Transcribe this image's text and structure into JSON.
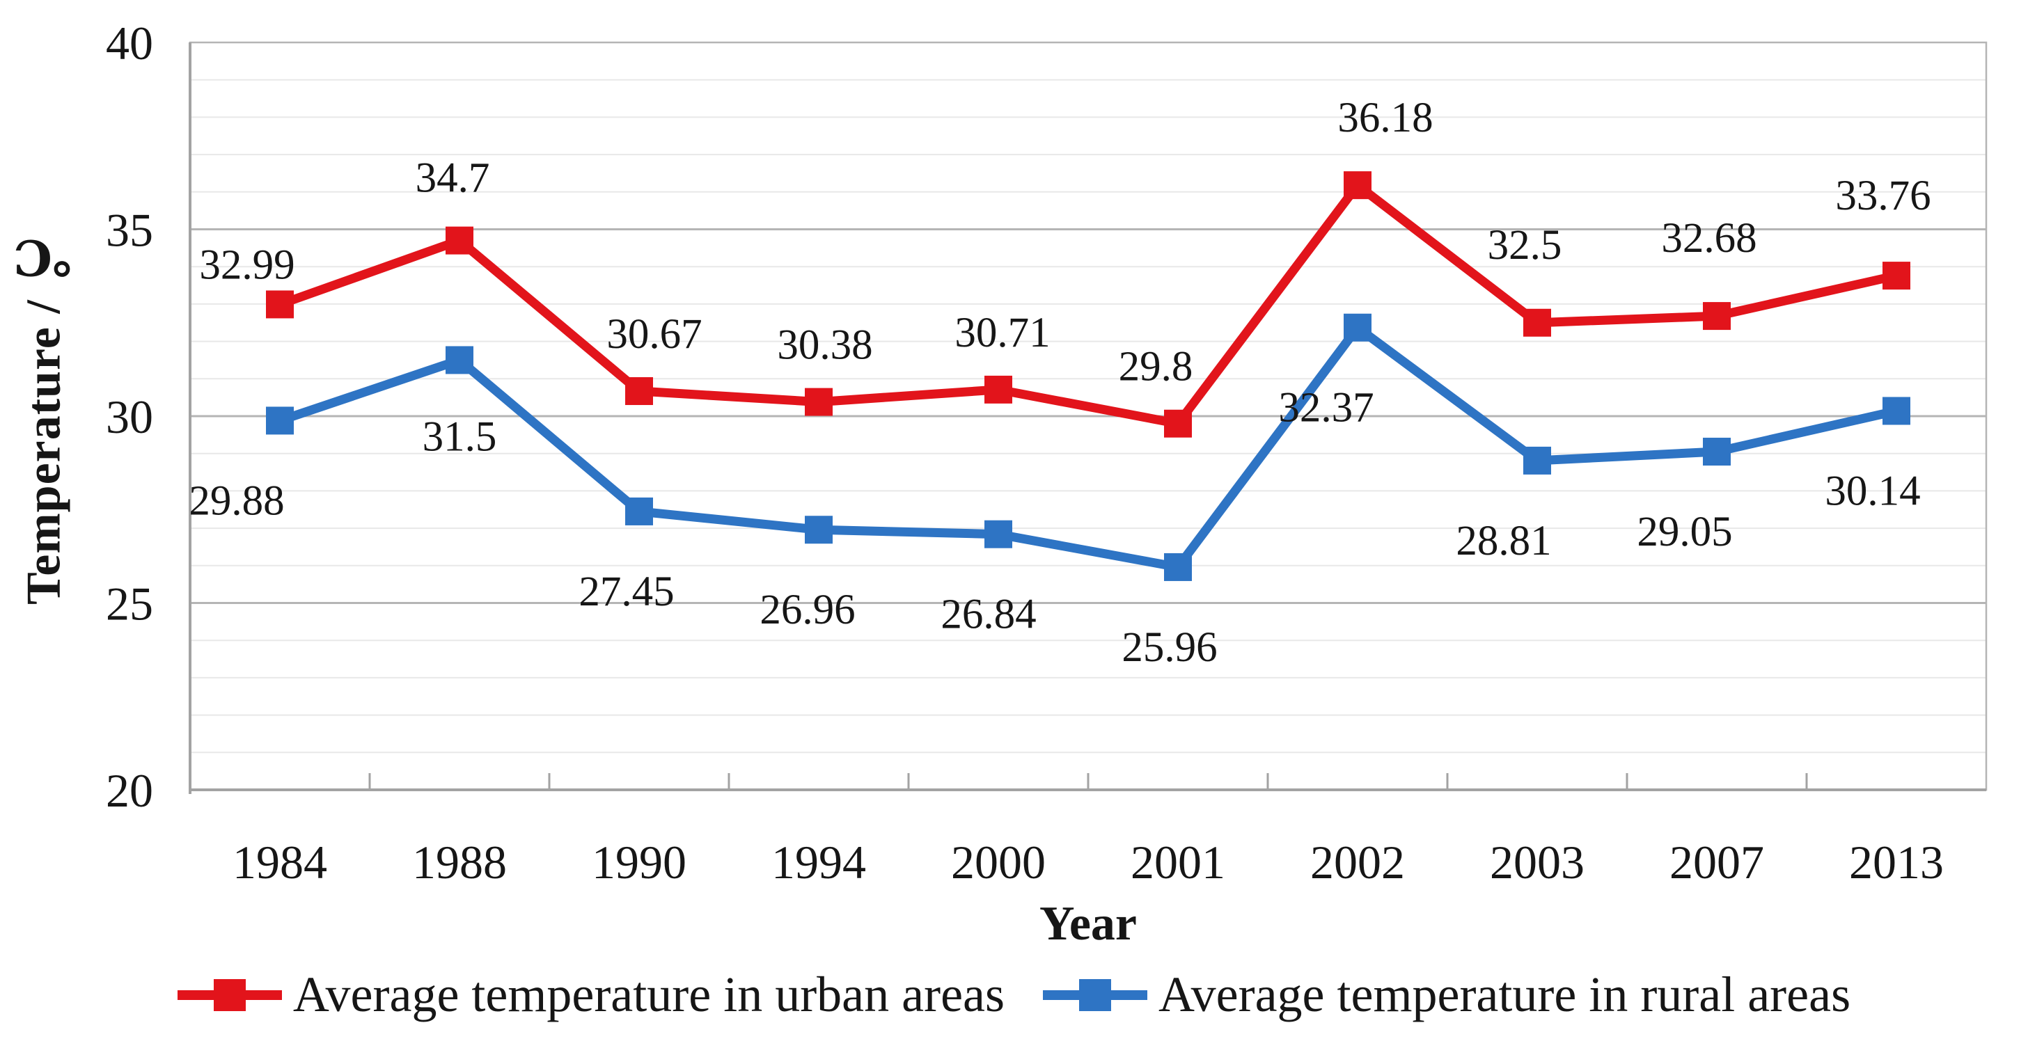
{
  "figure": {
    "background": "#ffffff"
  },
  "chart_data": {
    "type": "line",
    "title": "",
    "xlabel": "Year",
    "ylabel": "Temperature / ℃",
    "categories": [
      "1984",
      "1988",
      "1990",
      "1994",
      "2000",
      "2001",
      "2002",
      "2003",
      "2007",
      "2013"
    ],
    "ylim": [
      20,
      40
    ],
    "ytick_step": 5,
    "minor_grid_step": 1,
    "grid": true,
    "legend_position": "bottom",
    "series": [
      {
        "name": "Average temperature in urban areas",
        "color": "#E2141B",
        "marker": "square",
        "values": [
          32.99,
          34.7,
          30.67,
          30.38,
          30.71,
          29.8,
          36.18,
          32.5,
          32.68,
          33.76
        ],
        "labels": [
          "32.99",
          "34.7",
          "30.67",
          "30.38",
          "30.71",
          "29.8",
          "36.18",
          "32.5",
          "32.68",
          "33.76"
        ],
        "label_side": "above",
        "label_dx": [
          -47,
          -10,
          22,
          9,
          6,
          -32,
          40,
          -18,
          -11,
          -19
        ],
        "label_dy": [
          25,
          -8,
          0,
          0,
          0,
          0,
          -15,
          -30,
          -30,
          -33
        ]
      },
      {
        "name": "Average temperature in rural areas",
        "color": "#2E74C4",
        "marker": "square",
        "values": [
          29.88,
          31.5,
          27.45,
          26.96,
          26.84,
          25.96,
          32.37,
          28.81,
          29.05,
          30.14
        ],
        "labels": [
          "29.88",
          "31.5",
          "27.45",
          "26.96",
          "26.84",
          "25.96",
          "32.37",
          "28.81",
          "29.05",
          "30.14"
        ],
        "label_side": "below",
        "label_dx": [
          -62,
          0,
          -18,
          -16,
          -14,
          -12,
          -45,
          -48,
          -46,
          -34
        ],
        "label_dy": [
          0,
          -5,
          0,
          0,
          0,
          0,
          0,
          0,
          0,
          0
        ]
      }
    ],
    "axis_colors": {
      "minor_grid": "#E8E8E8",
      "major_grid": "#B5B5B5",
      "axis": "#A3A3A3",
      "text": "#161616"
    }
  }
}
